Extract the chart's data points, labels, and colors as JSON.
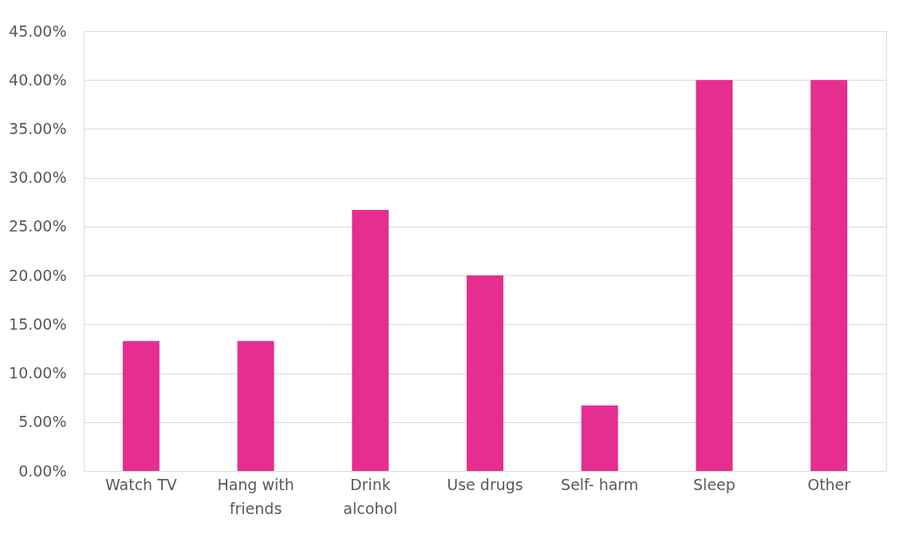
{
  "chart_data": {
    "type": "bar",
    "categories": [
      "Watch TV",
      "Hang with friends",
      "Drink alcohol",
      "Use drugs",
      "Self- harm",
      "Sleep",
      "Other"
    ],
    "values": [
      13.3,
      13.3,
      26.7,
      20,
      6.7,
      40,
      40
    ],
    "color": "#e52e8f",
    "ylim": [
      0,
      45
    ],
    "yticks": [
      {
        "value": 0,
        "label": "0.00%"
      },
      {
        "value": 5,
        "label": "5.00%"
      },
      {
        "value": 10,
        "label": "10.00%"
      },
      {
        "value": 15,
        "label": "15.00%"
      },
      {
        "value": 20,
        "label": "20.00%"
      },
      {
        "value": 25,
        "label": "25.00%"
      },
      {
        "value": 30,
        "label": "30.00%"
      },
      {
        "value": 35,
        "label": "35.00%"
      },
      {
        "value": 40,
        "label": "40.00%"
      },
      {
        "value": 45,
        "label": "45.00%"
      }
    ],
    "grid": "y"
  }
}
